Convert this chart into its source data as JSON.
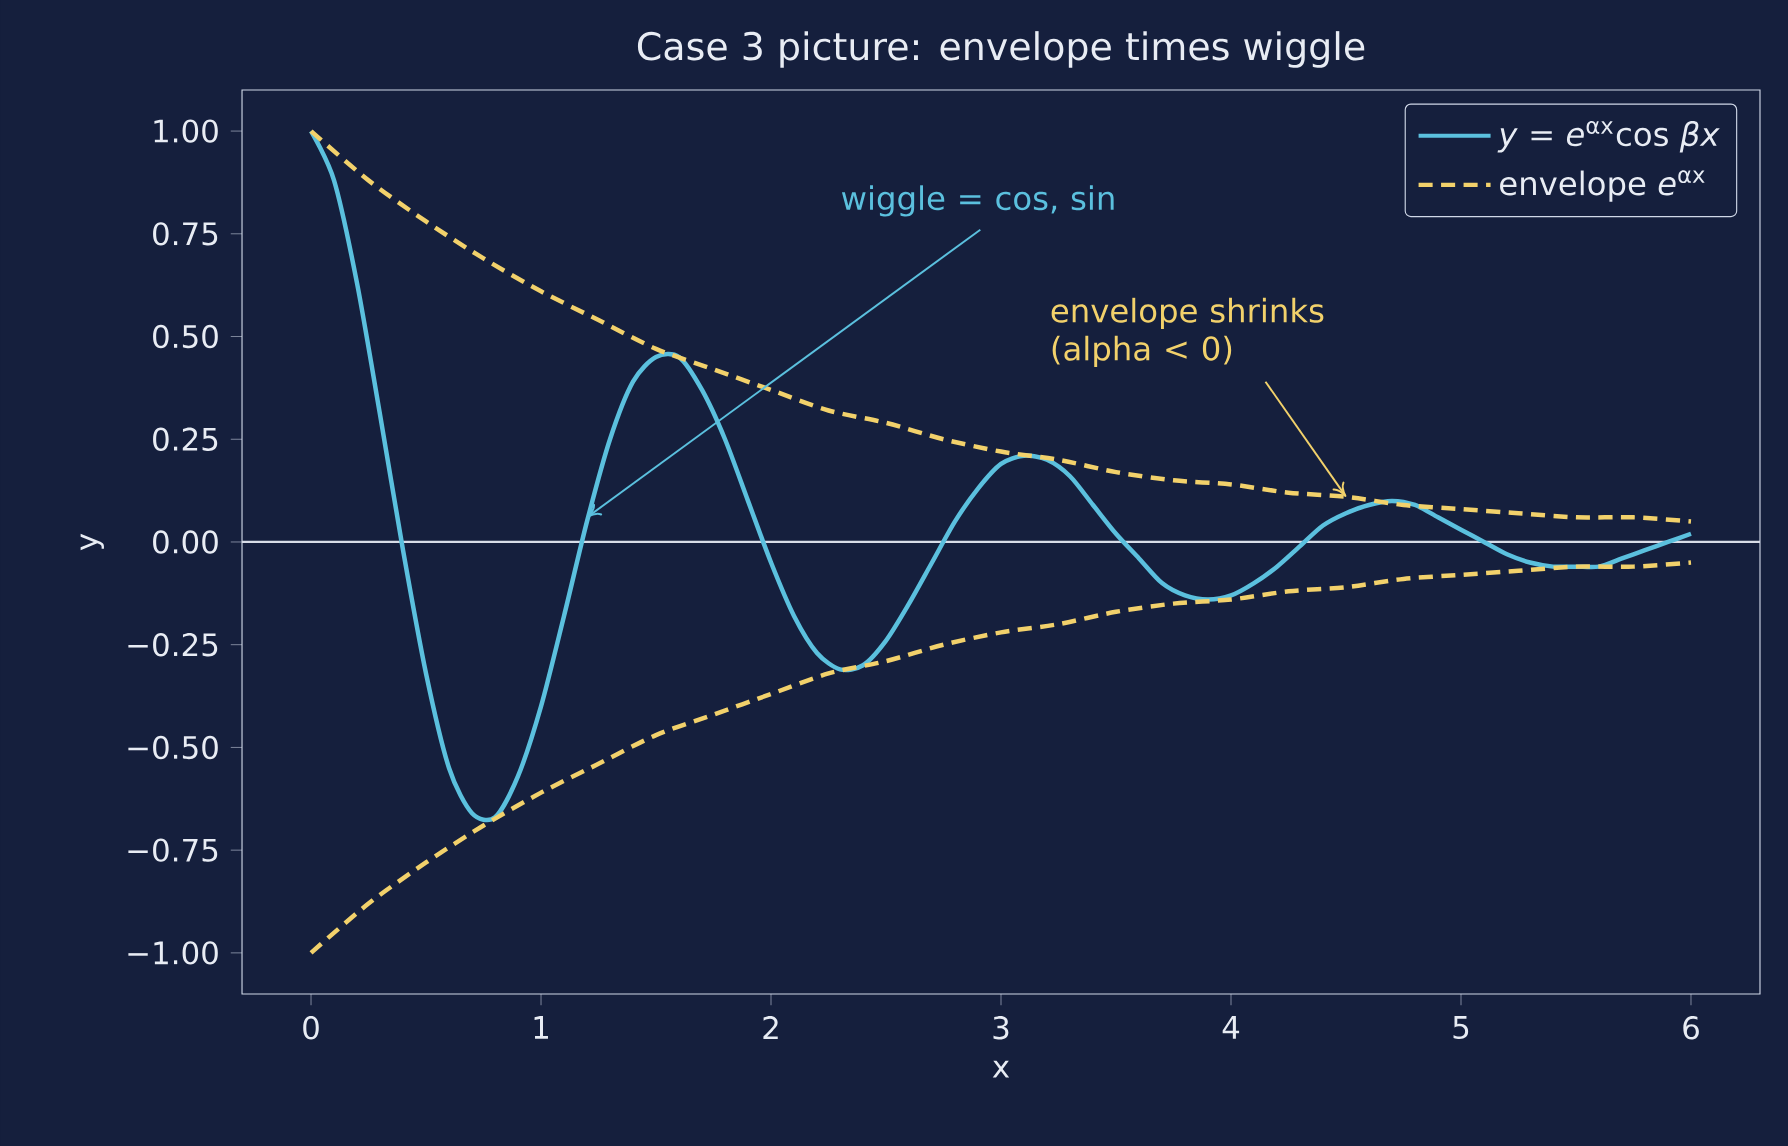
{
  "chart_data": {
    "type": "line",
    "title": "Case 3 picture: envelope times wiggle",
    "xlabel": "x",
    "ylabel": "y",
    "xlim": [
      -0.3,
      6.3
    ],
    "ylim": [
      -1.1,
      1.1
    ],
    "xticks": [
      0,
      1,
      2,
      3,
      4,
      5,
      6
    ],
    "yticks": [
      {
        "value": -1,
        "label": "−1.00"
      },
      {
        "value": -0.75,
        "label": "−0.75"
      },
      {
        "value": -0.5,
        "label": "−0.50"
      },
      {
        "value": -0.25,
        "label": "−0.25"
      },
      {
        "value": 0,
        "label": "0.00"
      },
      {
        "value": 0.25,
        "label": "0.25"
      },
      {
        "value": 0.5,
        "label": "0.50"
      },
      {
        "value": 0.75,
        "label": "0.75"
      },
      {
        "value": 1,
        "label": "1.00"
      }
    ],
    "legend": "top right",
    "grid": false,
    "series": [
      {
        "name": "*y* = *e*$^{αx}$cos *βx*",
        "color": "#5bc0de",
        "line_style": "solid",
        "x": [
          0,
          0.1,
          0.2,
          0.3,
          0.4,
          0.5,
          0.6,
          0.7,
          0.8,
          0.9,
          1.0,
          1.1,
          1.2,
          1.3,
          1.4,
          1.5,
          1.6,
          1.7,
          1.8,
          1.9,
          2.0,
          2.1,
          2.2,
          2.3,
          2.4,
          2.5,
          2.6,
          2.7,
          2.8,
          2.9,
          3.0,
          3.1,
          3.2,
          3.3,
          3.4,
          3.5,
          3.6,
          3.7,
          3.8,
          3.9,
          4.0,
          4.1,
          4.2,
          4.3,
          4.4,
          4.5,
          4.6,
          4.7,
          4.8,
          4.9,
          5.0,
          5.1,
          5.2,
          5.3,
          5.4,
          5.5,
          5.6,
          5.7,
          5.8,
          5.9,
          6.0
        ],
        "values": [
          1.0,
          0.88,
          0.63,
          0.31,
          -0.02,
          -0.32,
          -0.55,
          -0.66,
          -0.67,
          -0.57,
          -0.4,
          -0.18,
          0.05,
          0.25,
          0.39,
          0.45,
          0.45,
          0.37,
          0.25,
          0.1,
          -0.05,
          -0.18,
          -0.27,
          -0.31,
          -0.3,
          -0.24,
          -0.15,
          -0.05,
          0.05,
          0.13,
          0.19,
          0.21,
          0.2,
          0.16,
          0.09,
          0.02,
          -0.04,
          -0.1,
          -0.13,
          -0.14,
          -0.13,
          -0.1,
          -0.06,
          -0.01,
          0.04,
          0.07,
          0.09,
          0.1,
          0.09,
          0.06,
          0.03,
          0.0,
          -0.03,
          -0.05,
          -0.06,
          -0.06,
          -0.06,
          -0.04,
          -0.02,
          0.0,
          0.02
        ]
      },
      {
        "name": "envelope *e*$^{αx}$",
        "color": "#f2d16b",
        "line_style": "dashed",
        "x": [
          0,
          0.25,
          0.5,
          0.75,
          1,
          1.25,
          1.5,
          1.75,
          2,
          2.25,
          2.5,
          2.75,
          3,
          3.25,
          3.5,
          3.75,
          4,
          4.25,
          4.5,
          4.75,
          5,
          5.25,
          5.5,
          5.75,
          6
        ],
        "values": [
          1.0,
          0.88,
          0.78,
          0.69,
          0.61,
          0.54,
          0.47,
          0.42,
          0.37,
          0.32,
          0.29,
          0.25,
          0.22,
          0.2,
          0.17,
          0.15,
          0.14,
          0.12,
          0.11,
          0.09,
          0.08,
          0.07,
          0.06,
          0.06,
          0.05
        ]
      },
      {
        "color": "#f2d16b",
        "line_style": "dashed",
        "x": [
          0,
          0.25,
          0.5,
          0.75,
          1,
          1.25,
          1.5,
          1.75,
          2,
          2.25,
          2.5,
          2.75,
          3,
          3.25,
          3.5,
          3.75,
          4,
          4.25,
          4.5,
          4.75,
          5,
          5.25,
          5.5,
          5.75,
          6
        ],
        "values": [
          -1.0,
          -0.88,
          -0.78,
          -0.69,
          -0.61,
          -0.54,
          -0.47,
          -0.42,
          -0.37,
          -0.32,
          -0.29,
          -0.25,
          -0.22,
          -0.2,
          -0.17,
          -0.15,
          -0.14,
          -0.12,
          -0.11,
          -0.09,
          -0.08,
          -0.07,
          -0.06,
          -0.06,
          -0.05
        ]
      }
    ],
    "ref_lines": [
      {
        "axis": "y",
        "value": 0,
        "color": "#d8dde8"
      }
    ],
    "annotations": [
      {
        "text": "wiggle = cos, sin",
        "x": 1.2,
        "y": 0.06
      },
      {
        "text": "envelope shrinks (alpha < 0)",
        "x": 4.5,
        "y": 0.11
      }
    ]
  }
}
